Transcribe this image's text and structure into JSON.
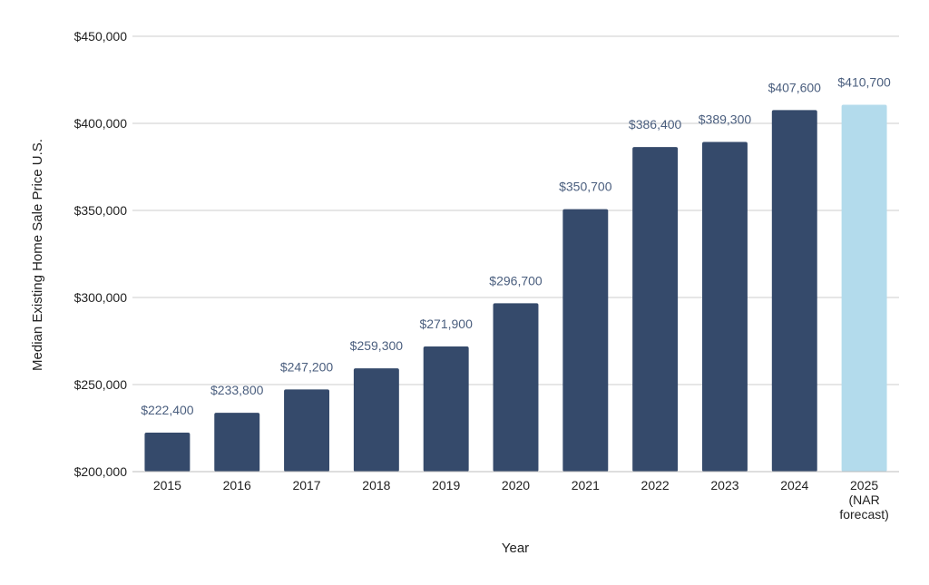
{
  "chart_data": {
    "type": "bar",
    "title": "",
    "xlabel": "Year",
    "ylabel": "Median Existing Home Sale Price U.S.",
    "ylim": [
      200000,
      450000
    ],
    "yticks": [
      200000,
      250000,
      300000,
      350000,
      400000,
      450000
    ],
    "ytick_labels": [
      "$200,000",
      "$250,000",
      "$300,000",
      "$350,000",
      "$400,000",
      "$450,000"
    ],
    "grid": true,
    "legend": "none",
    "categories": [
      [
        "2015"
      ],
      [
        "2016"
      ],
      [
        "2017"
      ],
      [
        "2018"
      ],
      [
        "2019"
      ],
      [
        "2020"
      ],
      [
        "2021"
      ],
      [
        "2022"
      ],
      [
        "2023"
      ],
      [
        "2024"
      ],
      [
        "2025",
        "(NAR",
        "forecast)"
      ]
    ],
    "values": [
      222400,
      233800,
      247200,
      259300,
      271900,
      296700,
      350700,
      386400,
      389300,
      407600,
      410700
    ],
    "data_labels": [
      "$222,400",
      "$233,800",
      "$247,200",
      "$259,300",
      "$271,900",
      "$296,700",
      "$350,700",
      "$386,400",
      "$389,300",
      "$407,600",
      "$410,700"
    ],
    "colors": {
      "bar": "#354a6b",
      "forecast_bar": "#b3dbec",
      "data_label": "#4a5e7e",
      "text": "#222222",
      "grid": "#cccccc"
    },
    "highlight_index": 10
  }
}
